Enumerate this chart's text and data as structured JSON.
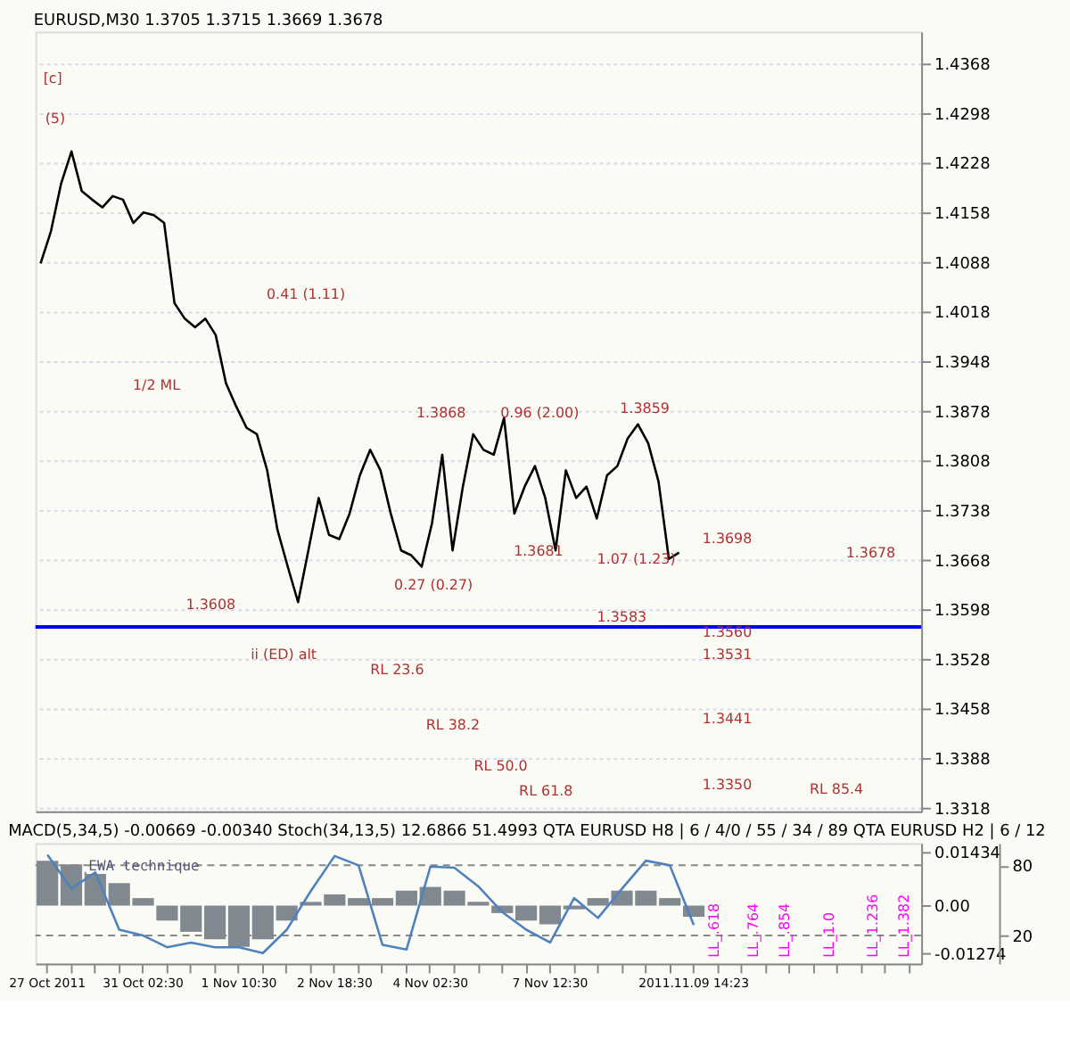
{
  "chart_data": [
    {
      "type": "line",
      "title": "EURUSD,M30  1.3705  1.3715  1.3669  1.3678",
      "categories": [
        null,
        null,
        null,
        null,
        null,
        null,
        null,
        null,
        null,
        null,
        null,
        null,
        null,
        null,
        null,
        null,
        null,
        null,
        null,
        null,
        null,
        null,
        null,
        null,
        null,
        null,
        null,
        null,
        null,
        null,
        null,
        null,
        null,
        null,
        null,
        null,
        null,
        null,
        null,
        null,
        null,
        null,
        null,
        null,
        null,
        null,
        null,
        null,
        null,
        null,
        null,
        null,
        null,
        null,
        null,
        null,
        null,
        null,
        null,
        null,
        null,
        null,
        null,
        null,
        null,
        null,
        null,
        null,
        null,
        null,
        null,
        null,
        null,
        null,
        null,
        null,
        null,
        null,
        null,
        null,
        null,
        null,
        null,
        null,
        null,
        null
      ],
      "ylim": [
        1.3313,
        1.4413
      ],
      "yticks": [
        1.3318,
        1.3388,
        1.3458,
        1.3528,
        1.3598,
        1.3668,
        1.3738,
        1.3808,
        1.3878,
        1.3948,
        1.4018,
        1.4088,
        1.4158,
        1.4228,
        1.4298,
        1.4368
      ],
      "tick_labels": "y",
      "grid": "y",
      "line_style": "solid",
      "marker": "none",
      "series": [
        {
          "color": "#000000",
          "values": [
            1.4086,
            1.4131,
            1.4199,
            1.4244,
            1.4188,
            1.4176,
            1.4165,
            1.4181,
            1.4176,
            1.4143,
            1.4158,
            1.4154,
            1.4143,
            1.403,
            1.4008,
            1.3996,
            1.4008,
            1.3985,
            1.3917,
            1.3884,
            1.3854,
            1.3845,
            1.3794,
            1.371,
            1.3658,
            1.3608,
            1.3681,
            1.3755,
            1.3703,
            1.3697,
            1.3733,
            1.3787,
            1.3823,
            1.3794,
            1.3733,
            1.3681,
            1.3674,
            1.3658,
            1.3719,
            1.3816,
            1.3681,
            1.3771,
            1.3845,
            1.3823,
            1.3816,
            1.3868,
            1.3733,
            1.3771,
            1.38,
            1.3755,
            1.3681,
            1.3794,
            1.3755,
            1.3771,
            1.3726,
            1.3787,
            1.38,
            1.3839,
            1.3859,
            1.3832,
            1.3778,
            1.3669,
            1.3678,
            null,
            null,
            null,
            null,
            null,
            null,
            null,
            null,
            null,
            null,
            null,
            null,
            null,
            null,
            null,
            null,
            null,
            null,
            null,
            null,
            null,
            null,
            null
          ]
        }
      ],
      "ref_lines": [
        {
          "axis": "y",
          "value": 1.3573,
          "color": "#0000ff",
          "line_style": "solid"
        }
      ],
      "annotations": [
        "[c]",
        "(5)",
        "0.41 (1.11)",
        "1/2 ML",
        "ii (ED) alt",
        "0.96 (2.00)",
        "1.07 (1.23)",
        "0.27 (0.27)",
        "RL 23.6",
        "RL 38.2",
        "RL 50.0",
        "RL 61.8",
        "RL 85.4",
        "1.3868",
        "1.3859",
        "1.3681",
        "1.3608",
        "1.3698",
        "1.3583",
        "1.3560",
        "1.3531",
        "1.3441",
        "1.3350",
        "1.3678"
      ]
    },
    {
      "type": "bar",
      "title": "MACD(5,34,5) -0.00669 -0.00340  Stoch(34,13,5) 12.6866 51.4993  QTA EURUSD H8 | 6 / 4/0 / 55 / 34 / 89  QTA EURUSD H2 | 6 / 12",
      "categories": [
        "27 Oct 2011",
        null,
        null,
        null,
        "31 Oct 02:30",
        null,
        null,
        null,
        "1 Nov 10:30",
        null,
        null,
        null,
        "2 Nov 18:30",
        null,
        null,
        null,
        "4 Nov 02:30",
        null,
        null,
        null,
        null,
        "7 Nov 12:30",
        null,
        null,
        null,
        null,
        null,
        "2011.11.09 14:23",
        null,
        null,
        null,
        null,
        null,
        null,
        null,
        null,
        null
      ],
      "ylim": [
        -0.0155,
        0.0167
      ],
      "yticks": [
        0.01434,
        {
          "value": 0,
          "label": "0.00"
        },
        -0.01274
      ],
      "y2lim": [
        -4,
        99
      ],
      "y2ticks": [
        80,
        20
      ],
      "grid": false,
      "series": [
        {
          "type": "bar",
          "color": "#808890",
          "values": [
            0.012,
            0.011,
            0.009,
            0.006,
            0.002,
            -0.004,
            -0.007,
            -0.009,
            -0.011,
            -0.009,
            -0.004,
            0.001,
            0.003,
            0.002,
            0.002,
            0.004,
            0.005,
            0.004,
            0.001,
            -0.002,
            -0.004,
            -0.005,
            -0.001,
            0.002,
            0.004,
            0.004,
            0.002,
            -0.003,
            null,
            null,
            null,
            null,
            null,
            null,
            null,
            null,
            null
          ]
        },
        {
          "type": "line",
          "axis": "y2",
          "color": "#4f81bd",
          "values": [
            89,
            60,
            74,
            25,
            20,
            10,
            14,
            10,
            10,
            5,
            25,
            58,
            88,
            80,
            12,
            8,
            79,
            78,
            62,
            40,
            25,
            14,
            52,
            35,
            60,
            84,
            80,
            29,
            null,
            null,
            null,
            null,
            null,
            null,
            null,
            null,
            null
          ]
        }
      ],
      "ref_lines": [
        {
          "axis": "y2",
          "value": 80,
          "color": "#888888",
          "line_style": "dashed"
        },
        {
          "axis": "y2",
          "value": 20,
          "color": "#888888",
          "line_style": "dashed"
        }
      ],
      "annotations": [
        "EWA technique",
        "LL_.618",
        "LL_.764",
        "LL_.854",
        "LL_1.0",
        "LL_1.236",
        "LL_1.382"
      ]
    }
  ]
}
